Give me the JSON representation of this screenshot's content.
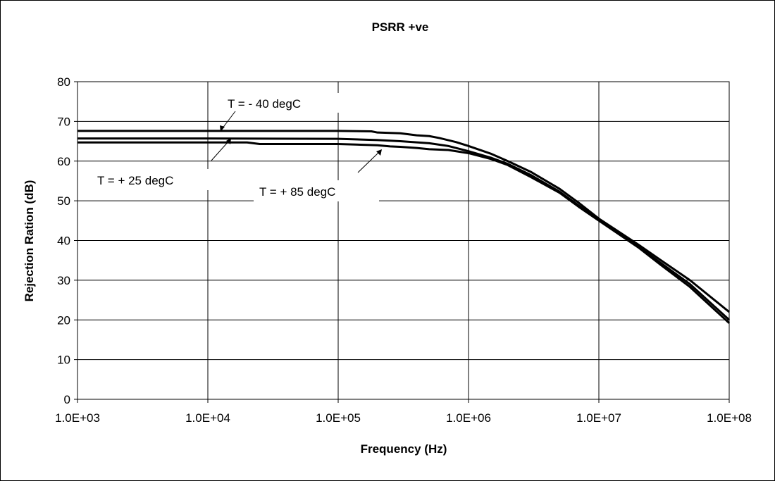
{
  "chart_data": {
    "type": "line",
    "title": "PSRR +ve",
    "xlabel": "Frequency (Hz)",
    "ylabel": "Rejection Ration (dB)",
    "x_scale": "log",
    "xlim": [
      1000,
      100000000
    ],
    "ylim": [
      0,
      80
    ],
    "x_tick_values": [
      1000,
      10000,
      100000,
      1000000,
      10000000,
      100000000
    ],
    "x_tick_labels": [
      "1.0E+03",
      "1.0E+04",
      "1.0E+05",
      "1.0E+06",
      "1.0E+07",
      "1.0E+08"
    ],
    "y_ticks": [
      0,
      10,
      20,
      30,
      40,
      50,
      60,
      70,
      80
    ],
    "grid": true,
    "legend": "none",
    "series": [
      {
        "name": "T = - 40 degC",
        "x": [
          1000,
          10000,
          100000,
          180000,
          200000,
          300000,
          400000,
          500000,
          600000,
          800000,
          1000000,
          1500000,
          2000000,
          3000000,
          5000000,
          7000000,
          10000000,
          20000000,
          30000000,
          50000000,
          100000000
        ],
        "y": [
          67.6,
          67.6,
          67.6,
          67.5,
          67.2,
          67.0,
          66.5,
          66.3,
          65.8,
          64.8,
          63.8,
          61.8,
          60.0,
          57.3,
          53.0,
          49.5,
          45.5,
          39.0,
          35.0,
          30.0,
          22.0
        ]
      },
      {
        "name": "T = + 25 degC",
        "x": [
          1000,
          10000,
          100000,
          200000,
          300000,
          500000,
          700000,
          1000000,
          1500000,
          2000000,
          3000000,
          5000000,
          7000000,
          10000000,
          20000000,
          30000000,
          50000000,
          100000000
        ],
        "y": [
          65.7,
          65.7,
          65.6,
          65.3,
          65.0,
          64.5,
          63.8,
          62.5,
          60.8,
          59.3,
          56.5,
          52.3,
          48.8,
          45.2,
          38.5,
          34.3,
          29.0,
          20.0
        ]
      },
      {
        "name": "T = + 85 degC",
        "x": [
          1000,
          20000,
          25000,
          100000,
          200000,
          250000,
          300000,
          400000,
          500000,
          700000,
          1000000,
          1500000,
          2000000,
          3000000,
          5000000,
          7000000,
          10000000,
          20000000,
          30000000,
          50000000,
          100000000
        ],
        "y": [
          64.7,
          64.7,
          64.3,
          64.3,
          64.0,
          63.7,
          63.6,
          63.3,
          63.0,
          62.8,
          62.0,
          60.5,
          59.0,
          56.0,
          52.0,
          48.5,
          45.0,
          38.3,
          33.8,
          28.3,
          19.2
        ]
      }
    ],
    "annotations": [
      "T = - 40 degC",
      "T = + 25 degC",
      "T = + 85 degC"
    ]
  }
}
